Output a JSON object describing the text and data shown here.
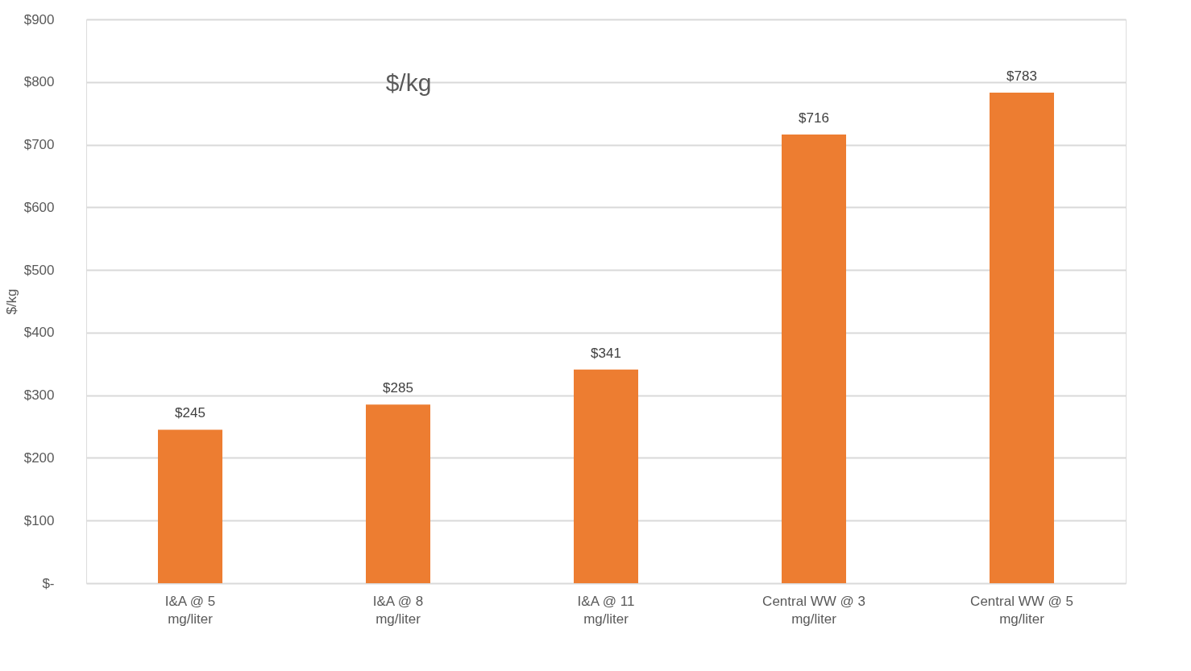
{
  "chart_data": {
    "type": "bar",
    "title": "$/kg",
    "ylabel": "$/kg",
    "categories": [
      "I&A @ 5 mg/liter",
      "I&A @ 8 mg/liter",
      "I&A @ 11 mg/liter",
      "Central WW @ 3 mg/liter",
      "Central WW @ 5 mg/liter"
    ],
    "values": [
      245,
      285,
      341,
      716,
      783
    ],
    "value_labels": [
      "$245",
      "$285",
      "$341",
      "$716",
      "$783"
    ],
    "color": "#ed7d31",
    "ylim": [
      0,
      900
    ],
    "yticks": [
      {
        "value": 0,
        "label": "$-"
      },
      {
        "value": 100,
        "label": "$100"
      },
      {
        "value": 200,
        "label": "$200"
      },
      {
        "value": 300,
        "label": "$300"
      },
      {
        "value": 400,
        "label": "$400"
      },
      {
        "value": 500,
        "label": "$500"
      },
      {
        "value": 600,
        "label": "$600"
      },
      {
        "value": 700,
        "label": "$700"
      },
      {
        "value": 800,
        "label": "$800"
      },
      {
        "value": 900,
        "label": "$900"
      }
    ],
    "grid": "y"
  }
}
